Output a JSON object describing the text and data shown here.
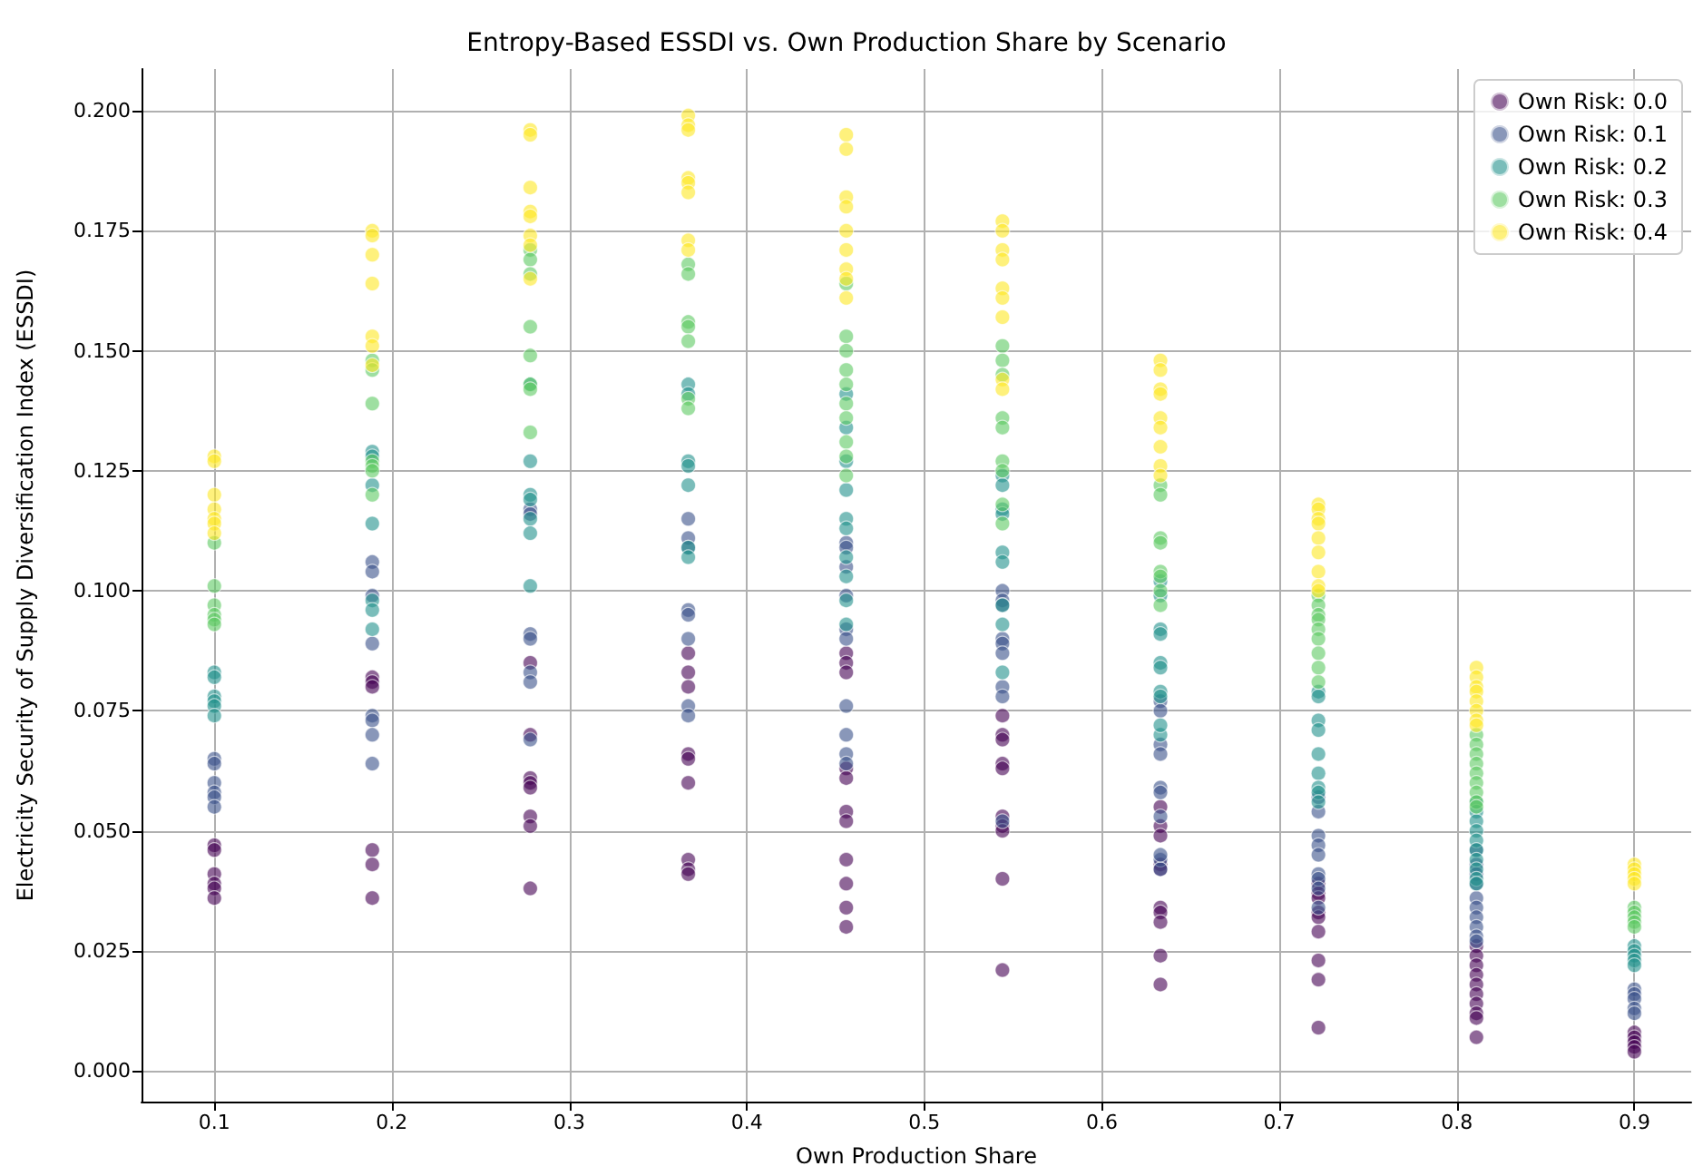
{
  "chart_data": {
    "type": "scatter",
    "title": "Entropy-Based ESSDI vs. Own Production Share by Scenario",
    "xlabel": "Own Production Share",
    "ylabel": "Electricity Security of Supply Diversification Index (ESSDI)",
    "xlim": [
      0.059,
      0.932
    ],
    "ylim": [
      -0.0064,
      0.2087
    ],
    "xticks": [
      0.1,
      0.2,
      0.3,
      0.4,
      0.5,
      0.6,
      0.7,
      0.8,
      0.9
    ],
    "yticks": [
      {
        "value": 0,
        "label": "0.000"
      },
      0.025,
      {
        "value": 0.05,
        "label": "0.050"
      },
      0.075,
      {
        "value": 0.1,
        "label": "0.100"
      },
      0.125,
      {
        "value": 0.15,
        "label": "0.150"
      },
      0.175,
      {
        "value": 0.2,
        "label": "0.200"
      }
    ],
    "grid": true,
    "legend": "top right",
    "marker": "circle",
    "series": [
      {
        "name": "Own Risk: 0.0",
        "color": "#440154",
        "x": [
          0.1,
          0.1,
          0.1,
          0.1,
          0.1,
          0.1,
          0.189,
          0.189,
          0.189,
          0.189,
          0.189,
          0.189,
          0.278,
          0.278,
          0.278,
          0.278,
          0.278,
          0.278,
          0.278,
          0.278,
          0.367,
          0.367,
          0.367,
          0.367,
          0.367,
          0.367,
          0.367,
          0.367,
          0.367,
          0.456,
          0.456,
          0.456,
          0.456,
          0.456,
          0.456,
          0.456,
          0.456,
          0.456,
          0.456,
          0.456,
          0.544,
          0.544,
          0.544,
          0.544,
          0.544,
          0.544,
          0.544,
          0.544,
          0.544,
          0.544,
          0.633,
          0.633,
          0.633,
          0.633,
          0.633,
          0.633,
          0.633,
          0.633,
          0.633,
          0.633,
          0.722,
          0.722,
          0.722,
          0.722,
          0.722,
          0.722,
          0.722,
          0.722,
          0.722,
          0.811,
          0.811,
          0.811,
          0.811,
          0.811,
          0.811,
          0.811,
          0.811,
          0.811,
          0.811,
          0.9,
          0.9,
          0.9,
          0.9,
          0.9
        ],
        "values": [
          0.047,
          0.046,
          0.041,
          0.039,
          0.038,
          0.036,
          0.082,
          0.081,
          0.08,
          0.046,
          0.043,
          0.036,
          0.07,
          0.061,
          0.06,
          0.059,
          0.053,
          0.051,
          0.038,
          0.085,
          0.087,
          0.083,
          0.08,
          0.066,
          0.065,
          0.06,
          0.044,
          0.042,
          0.041,
          0.087,
          0.085,
          0.083,
          0.063,
          0.061,
          0.054,
          0.052,
          0.044,
          0.039,
          0.034,
          0.03,
          0.074,
          0.07,
          0.069,
          0.064,
          0.063,
          0.053,
          0.051,
          0.05,
          0.04,
          0.021,
          0.055,
          0.051,
          0.049,
          0.043,
          0.042,
          0.034,
          0.033,
          0.031,
          0.024,
          0.018,
          0.039,
          0.037,
          0.036,
          0.033,
          0.032,
          0.029,
          0.023,
          0.019,
          0.009,
          0.026,
          0.024,
          0.022,
          0.02,
          0.018,
          0.016,
          0.014,
          0.012,
          0.011,
          0.007,
          0.008,
          0.007,
          0.006,
          0.005,
          0.004
        ]
      },
      {
        "name": "Own Risk: 0.1",
        "color": "#3b528b",
        "x": [
          0.1,
          0.1,
          0.1,
          0.1,
          0.1,
          0.1,
          0.189,
          0.189,
          0.189,
          0.189,
          0.189,
          0.189,
          0.189,
          0.189,
          0.278,
          0.278,
          0.278,
          0.278,
          0.278,
          0.278,
          0.278,
          0.367,
          0.367,
          0.367,
          0.367,
          0.367,
          0.367,
          0.367,
          0.367,
          0.456,
          0.456,
          0.456,
          0.456,
          0.456,
          0.456,
          0.456,
          0.456,
          0.456,
          0.456,
          0.544,
          0.544,
          0.544,
          0.544,
          0.544,
          0.544,
          0.544,
          0.544,
          0.544,
          0.633,
          0.633,
          0.633,
          0.633,
          0.633,
          0.633,
          0.633,
          0.633,
          0.633,
          0.633,
          0.722,
          0.722,
          0.722,
          0.722,
          0.722,
          0.722,
          0.722,
          0.722,
          0.722,
          0.811,
          0.811,
          0.811,
          0.811,
          0.811,
          0.811,
          0.811,
          0.811,
          0.811,
          0.811,
          0.9,
          0.9,
          0.9,
          0.9,
          0.9
        ],
        "values": [
          0.065,
          0.064,
          0.06,
          0.058,
          0.057,
          0.055,
          0.106,
          0.104,
          0.099,
          0.089,
          0.074,
          0.073,
          0.07,
          0.064,
          0.117,
          0.116,
          0.091,
          0.09,
          0.083,
          0.081,
          0.069,
          0.115,
          0.111,
          0.109,
          0.096,
          0.095,
          0.09,
          0.076,
          0.074,
          0.11,
          0.109,
          0.105,
          0.099,
          0.092,
          0.09,
          0.076,
          0.07,
          0.066,
          0.064,
          0.1,
          0.098,
          0.097,
          0.09,
          0.089,
          0.087,
          0.08,
          0.078,
          0.052,
          0.077,
          0.075,
          0.068,
          0.066,
          0.059,
          0.058,
          0.053,
          0.044,
          0.042,
          0.045,
          0.057,
          0.054,
          0.049,
          0.047,
          0.045,
          0.041,
          0.04,
          0.038,
          0.034,
          0.046,
          0.043,
          0.041,
          0.039,
          0.036,
          0.034,
          0.032,
          0.03,
          0.028,
          0.027,
          0.017,
          0.016,
          0.015,
          0.013,
          0.012
        ]
      },
      {
        "name": "Own Risk: 0.2",
        "color": "#21918c",
        "x": [
          0.1,
          0.1,
          0.1,
          0.1,
          0.1,
          0.1,
          0.189,
          0.189,
          0.189,
          0.189,
          0.189,
          0.189,
          0.189,
          0.278,
          0.278,
          0.278,
          0.278,
          0.278,
          0.278,
          0.278,
          0.367,
          0.367,
          0.367,
          0.367,
          0.367,
          0.367,
          0.367,
          0.456,
          0.456,
          0.456,
          0.456,
          0.456,
          0.456,
          0.456,
          0.456,
          0.456,
          0.456,
          0.544,
          0.544,
          0.544,
          0.544,
          0.544,
          0.544,
          0.544,
          0.544,
          0.544,
          0.633,
          0.633,
          0.633,
          0.633,
          0.633,
          0.633,
          0.633,
          0.633,
          0.633,
          0.633,
          0.722,
          0.722,
          0.722,
          0.722,
          0.722,
          0.722,
          0.722,
          0.722,
          0.722,
          0.811,
          0.811,
          0.811,
          0.811,
          0.811,
          0.811,
          0.811,
          0.811,
          0.811,
          0.811,
          0.9,
          0.9,
          0.9,
          0.9,
          0.9
        ],
        "values": [
          0.083,
          0.082,
          0.078,
          0.077,
          0.076,
          0.074,
          0.129,
          0.128,
          0.122,
          0.114,
          0.098,
          0.096,
          0.092,
          0.143,
          0.127,
          0.12,
          0.119,
          0.115,
          0.112,
          0.101,
          0.143,
          0.141,
          0.127,
          0.126,
          0.122,
          0.109,
          0.107,
          0.141,
          0.134,
          0.127,
          0.121,
          0.115,
          0.113,
          0.107,
          0.103,
          0.098,
          0.093,
          0.124,
          0.122,
          0.117,
          0.116,
          0.108,
          0.106,
          0.097,
          0.093,
          0.083,
          0.102,
          0.099,
          0.092,
          0.091,
          0.085,
          0.084,
          0.079,
          0.078,
          0.07,
          0.072,
          0.079,
          0.078,
          0.073,
          0.071,
          0.066,
          0.062,
          0.059,
          0.058,
          0.056,
          0.056,
          0.054,
          0.052,
          0.05,
          0.048,
          0.046,
          0.044,
          0.042,
          0.04,
          0.039,
          0.026,
          0.025,
          0.024,
          0.023,
          0.022
        ]
      },
      {
        "name": "Own Risk: 0.3",
        "color": "#5ec962",
        "x": [
          0.1,
          0.1,
          0.1,
          0.1,
          0.1,
          0.1,
          0.189,
          0.189,
          0.189,
          0.189,
          0.189,
          0.189,
          0.189,
          0.278,
          0.278,
          0.278,
          0.278,
          0.278,
          0.278,
          0.278,
          0.278,
          0.367,
          0.367,
          0.367,
          0.367,
          0.367,
          0.367,
          0.367,
          0.456,
          0.456,
          0.456,
          0.456,
          0.456,
          0.456,
          0.456,
          0.456,
          0.456,
          0.456,
          0.544,
          0.544,
          0.544,
          0.544,
          0.544,
          0.544,
          0.544,
          0.544,
          0.544,
          0.633,
          0.633,
          0.633,
          0.633,
          0.633,
          0.633,
          0.633,
          0.633,
          0.722,
          0.722,
          0.722,
          0.722,
          0.722,
          0.722,
          0.722,
          0.722,
          0.722,
          0.811,
          0.811,
          0.811,
          0.811,
          0.811,
          0.811,
          0.811,
          0.811,
          0.811,
          0.9,
          0.9,
          0.9,
          0.9,
          0.9
        ],
        "values": [
          0.11,
          0.101,
          0.097,
          0.095,
          0.094,
          0.093,
          0.148,
          0.146,
          0.139,
          0.127,
          0.126,
          0.125,
          0.12,
          0.171,
          0.169,
          0.166,
          0.155,
          0.149,
          0.143,
          0.142,
          0.133,
          0.168,
          0.166,
          0.156,
          0.155,
          0.152,
          0.14,
          0.138,
          0.164,
          0.153,
          0.15,
          0.146,
          0.143,
          0.139,
          0.136,
          0.131,
          0.128,
          0.124,
          0.151,
          0.148,
          0.145,
          0.136,
          0.134,
          0.127,
          0.125,
          0.118,
          0.114,
          0.122,
          0.12,
          0.111,
          0.11,
          0.104,
          0.103,
          0.1,
          0.097,
          0.099,
          0.097,
          0.095,
          0.094,
          0.092,
          0.09,
          0.087,
          0.084,
          0.081,
          0.07,
          0.068,
          0.066,
          0.064,
          0.062,
          0.06,
          0.058,
          0.056,
          0.055,
          0.034,
          0.033,
          0.032,
          0.031,
          0.03
        ]
      },
      {
        "name": "Own Risk: 0.4",
        "color": "#fde725",
        "x": [
          0.1,
          0.1,
          0.1,
          0.1,
          0.1,
          0.1,
          0.1,
          0.189,
          0.189,
          0.189,
          0.189,
          0.189,
          0.189,
          0.189,
          0.278,
          0.278,
          0.278,
          0.278,
          0.278,
          0.278,
          0.278,
          0.278,
          0.367,
          0.367,
          0.367,
          0.367,
          0.367,
          0.367,
          0.367,
          0.367,
          0.456,
          0.456,
          0.456,
          0.456,
          0.456,
          0.456,
          0.456,
          0.456,
          0.456,
          0.544,
          0.544,
          0.544,
          0.544,
          0.544,
          0.544,
          0.544,
          0.544,
          0.544,
          0.633,
          0.633,
          0.633,
          0.633,
          0.633,
          0.633,
          0.633,
          0.633,
          0.633,
          0.722,
          0.722,
          0.722,
          0.722,
          0.722,
          0.722,
          0.722,
          0.722,
          0.722,
          0.811,
          0.811,
          0.811,
          0.811,
          0.811,
          0.811,
          0.811,
          0.811,
          0.9,
          0.9,
          0.9,
          0.9,
          0.9
        ],
        "values": [
          0.128,
          0.127,
          0.12,
          0.117,
          0.115,
          0.114,
          0.112,
          0.175,
          0.174,
          0.17,
          0.164,
          0.153,
          0.151,
          0.147,
          0.196,
          0.195,
          0.184,
          0.179,
          0.178,
          0.174,
          0.172,
          0.165,
          0.199,
          0.197,
          0.196,
          0.186,
          0.185,
          0.183,
          0.173,
          0.171,
          0.195,
          0.192,
          0.182,
          0.18,
          0.175,
          0.171,
          0.167,
          0.165,
          0.161,
          0.177,
          0.175,
          0.171,
          0.169,
          0.163,
          0.161,
          0.157,
          0.144,
          0.142,
          0.148,
          0.146,
          0.142,
          0.141,
          0.136,
          0.134,
          0.13,
          0.126,
          0.124,
          0.118,
          0.117,
          0.115,
          0.114,
          0.111,
          0.108,
          0.104,
          0.101,
          0.1,
          0.084,
          0.082,
          0.08,
          0.079,
          0.077,
          0.075,
          0.073,
          0.072,
          0.043,
          0.042,
          0.041,
          0.04,
          0.039
        ]
      }
    ]
  }
}
